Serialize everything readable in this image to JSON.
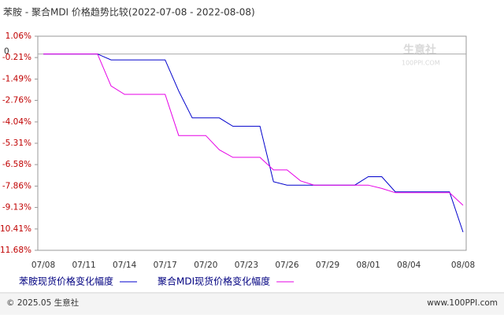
{
  "chart_data": {
    "type": "line",
    "title": "苯胺 - 聚合MDI 价格趋势比较(2022-07-08 - 2022-08-08)",
    "categories": [
      "07/08",
      null,
      null,
      "07/11",
      null,
      null,
      "07/14",
      null,
      null,
      "07/17",
      null,
      null,
      "07/20",
      null,
      null,
      "07/23",
      null,
      null,
      "07/26",
      null,
      null,
      "07/29",
      null,
      null,
      "08/01",
      null,
      null,
      "08/04",
      null,
      null,
      null,
      "08/08"
    ],
    "series": [
      {
        "name": "苯胺现货价格变化幅度",
        "color": "#0000cc",
        "values": [
          0,
          0,
          0,
          0,
          0,
          -0.35,
          -0.35,
          -0.35,
          -0.35,
          -0.35,
          -2.2,
          -3.8,
          -3.8,
          -3.8,
          -4.3,
          -4.3,
          -4.3,
          -7.6,
          -7.8,
          -7.8,
          -7.8,
          -7.8,
          -7.8,
          -7.8,
          -7.3,
          -7.3,
          -8.2,
          -8.2,
          -8.2,
          -8.2,
          -8.2,
          -10.6
        ]
      },
      {
        "name": "聚合MDI现货价格变化幅度",
        "color": "#e600e6",
        "values": [
          0,
          0,
          0,
          0,
          0,
          -1.9,
          -2.4,
          -2.4,
          -2.4,
          -2.4,
          -4.85,
          -4.85,
          -4.85,
          -5.7,
          -6.15,
          -6.15,
          -6.15,
          -6.9,
          -6.9,
          -7.55,
          -7.8,
          -7.8,
          -7.8,
          -7.8,
          -7.8,
          -8.0,
          -8.25,
          -8.25,
          -8.25,
          -8.25,
          -8.25,
          -9.0
        ]
      }
    ],
    "ylim": [
      -11.68,
      1.06
    ],
    "yticks": [
      {
        "value": 1.06,
        "label": "1.06%"
      },
      0,
      {
        "value": -0.21,
        "label": "-0.21%"
      },
      {
        "value": -1.49,
        "label": "-1.49%"
      },
      {
        "value": -2.76,
        "label": "-2.76%"
      },
      {
        "value": -4.04,
        "label": "-4.04%"
      },
      {
        "value": -5.31,
        "label": "-5.31%"
      },
      {
        "value": -6.58,
        "label": "-6.58%"
      },
      {
        "value": -7.86,
        "label": "-7.86%"
      },
      {
        "value": -9.13,
        "label": "-9.13%"
      },
      {
        "value": -10.41,
        "label": "-10.41%"
      },
      {
        "value": -11.68,
        "label": "-11.68%"
      }
    ],
    "zero_line": true,
    "watermark": {
      "name": "生意社",
      "site": "100PPI.COM"
    },
    "footer": {
      "left": "© 2025.05 生意社",
      "right": "www.100PPI.com"
    }
  }
}
